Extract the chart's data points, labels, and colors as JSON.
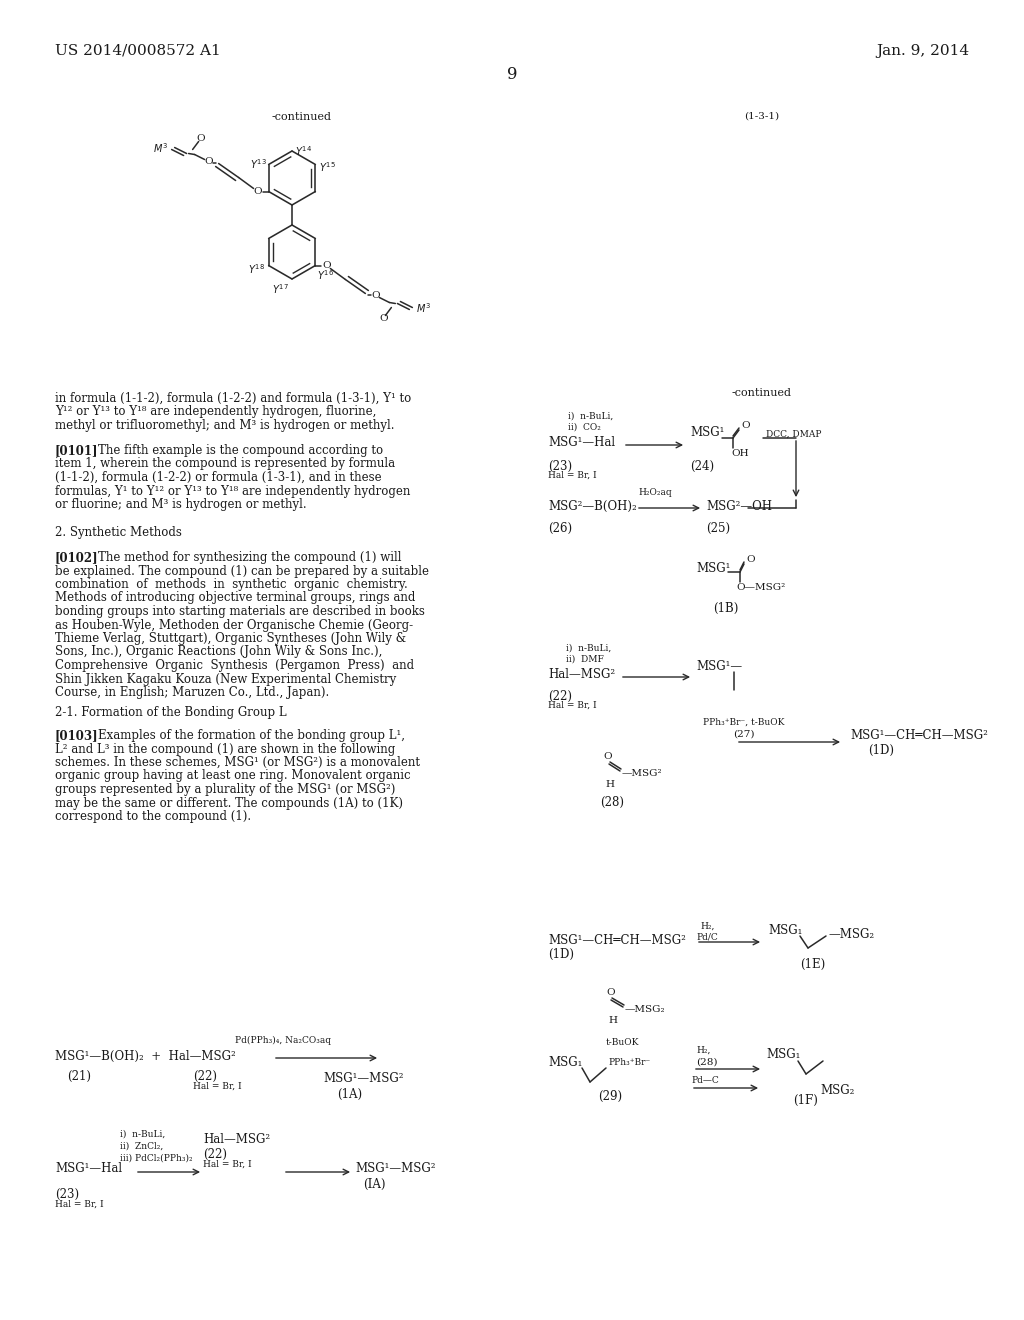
{
  "bg": "#ffffff",
  "tc": "#1a1a1a",
  "lc": "#2a2a2a",
  "pw": 1024,
  "ph": 1320,
  "lm": 55,
  "rm": 510,
  "fs": 8.5,
  "fss": 7.5,
  "fsss": 7.0,
  "lh": 13.5,
  "header_left": "US 2014/0008572 A1",
  "header_right": "Jan. 9, 2014",
  "page_num": "9"
}
